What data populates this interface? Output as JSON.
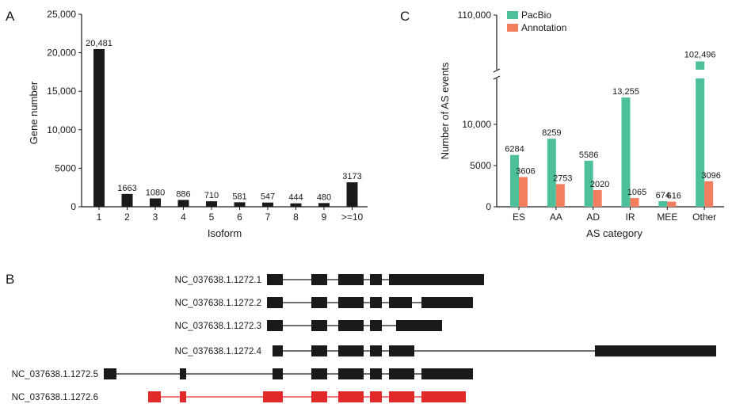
{
  "panel_labels": {
    "a": "A",
    "b": "B",
    "c": "C"
  },
  "chart_data": [
    {
      "type": "bar",
      "panel": "A",
      "categories": [
        "1",
        "2",
        "3",
        "4",
        "5",
        "6",
        "7",
        "8",
        "9",
        ">=10"
      ],
      "values": [
        20481,
        1663,
        1080,
        886,
        710,
        581,
        547,
        444,
        480,
        3173
      ],
      "value_labels": [
        "20,481",
        "1663",
        "1080",
        "886",
        "710",
        "581",
        "547",
        "444",
        "480",
        "3173"
      ],
      "xlabel": "Isoform",
      "ylabel": "Gene number",
      "ylim": [
        0,
        25000
      ],
      "yticks": [
        0,
        5000,
        10000,
        15000,
        20000,
        25000
      ],
      "ytick_labels": [
        "0",
        "5000",
        "10,000",
        "15,000",
        "20,000",
        "25,000"
      ],
      "bar_color": "#1a1a1a"
    },
    {
      "type": "bar",
      "panel": "C",
      "categories": [
        "ES",
        "AA",
        "AD",
        "IR",
        "MEE",
        "Other"
      ],
      "series": [
        {
          "name": "PacBio",
          "color": "#4dbf9a",
          "values": [
            6284,
            8259,
            5586,
            13255,
            674,
            102496
          ],
          "value_labels": [
            "6284",
            "8259",
            "5586",
            "13,255",
            "674",
            "102,496"
          ]
        },
        {
          "name": "Annotation",
          "color": "#f27d5f",
          "values": [
            3606,
            2753,
            2020,
            1065,
            616,
            3096
          ],
          "value_labels": [
            "3606",
            "2753",
            "2020",
            "1065",
            "616",
            "3096"
          ]
        }
      ],
      "xlabel": "AS category",
      "ylabel": "Number of AS events",
      "axis_break": true,
      "lower_ylim": [
        0,
        15000
      ],
      "upper_ytick": 110000,
      "upper_ytick_label": "110,000",
      "yticks": [
        0,
        5000,
        10000
      ],
      "ytick_labels": [
        "0",
        "5000",
        "10,000"
      ],
      "legend_position": "top-left"
    }
  ],
  "isoforms": [
    {
      "label": "NC_037638.1.1272.1",
      "color": "#1a1a1a",
      "exons": [
        [
          337,
          357
        ],
        [
          393,
          413
        ],
        [
          427,
          459
        ],
        [
          467,
          482
        ],
        [
          491,
          611
        ]
      ]
    },
    {
      "label": "NC_037638.1.1272.2",
      "color": "#1a1a1a",
      "exons": [
        [
          337,
          357
        ],
        [
          393,
          413
        ],
        [
          427,
          459
        ],
        [
          467,
          482
        ],
        [
          491,
          520
        ],
        [
          532,
          597
        ]
      ]
    },
    {
      "label": "NC_037638.1.1272.3",
      "color": "#1a1a1a",
      "exons": [
        [
          337,
          357
        ],
        [
          393,
          413
        ],
        [
          427,
          459
        ],
        [
          467,
          482
        ],
        [
          500,
          558
        ]
      ]
    },
    {
      "label": "NC_037638.1.1272.4",
      "color": "#1a1a1a",
      "exons": [
        [
          344,
          357
        ],
        [
          393,
          413
        ],
        [
          427,
          459
        ],
        [
          467,
          482
        ],
        [
          491,
          523
        ],
        [
          751,
          904
        ]
      ]
    },
    {
      "label": "NC_037638.1.1272.5",
      "color": "#1a1a1a",
      "exons": [
        [
          131,
          147
        ],
        [
          227,
          235
        ],
        [
          344,
          357
        ],
        [
          393,
          413
        ],
        [
          427,
          459
        ],
        [
          467,
          482
        ],
        [
          491,
          523
        ],
        [
          532,
          597
        ]
      ]
    },
    {
      "label": "NC_037638.1.1272.6",
      "color": "#e02a2a",
      "exons": [
        [
          187,
          203
        ],
        [
          227,
          235
        ],
        [
          332,
          357
        ],
        [
          393,
          413
        ],
        [
          427,
          459
        ],
        [
          467,
          482
        ],
        [
          491,
          523
        ],
        [
          532,
          588
        ]
      ]
    }
  ]
}
